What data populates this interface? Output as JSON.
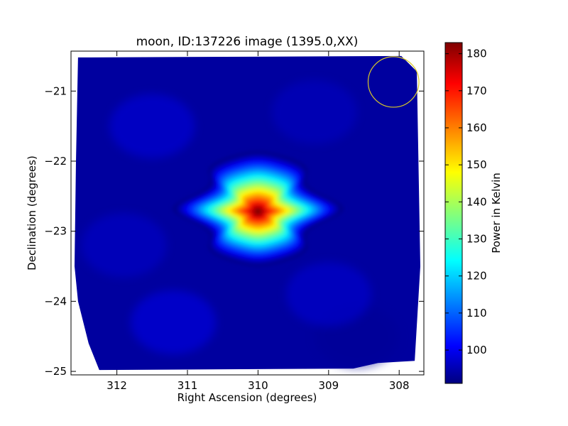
{
  "chart_data": [
    {
      "type": "heatmap",
      "title": "moon, ID:137226 image (1395.0,XX)",
      "xlabel": "Right Ascension (degrees)",
      "ylabel": "Declination (degrees)",
      "xlim": [
        312.65,
        307.65
      ],
      "ylim": [
        -25.05,
        -20.43
      ],
      "x_inverted": true,
      "xticks": [
        312,
        311,
        310,
        309,
        308
      ],
      "xtick_labels": [
        "312",
        "311",
        "310",
        "309",
        "308"
      ],
      "yticks": [
        -21,
        -22,
        -23,
        -24,
        -25
      ],
      "ytick_labels": [
        "−21",
        "−22",
        "−23",
        "−24",
        "−25"
      ],
      "background_level": 92,
      "peak": {
        "ra": 310.0,
        "dec": -22.72,
        "value": 183
      },
      "source_extent_deg": {
        "ra_halfwidth": 1.0,
        "dec_halfwidth": 0.75
      },
      "beam_circle": {
        "ra": 308.08,
        "dec": -20.87,
        "radius_deg": 0.36,
        "color": "#d6c62a"
      },
      "colorbar": {
        "label": "Power in Kelvin",
        "range": [
          91,
          183
        ],
        "ticks": [
          100,
          110,
          120,
          130,
          140,
          150,
          160,
          170,
          180
        ],
        "colormap": "jet"
      }
    }
  ],
  "colors": {
    "jet_low": "#00007f",
    "jet_blue": "#0000ff",
    "jet_cyan": "#00ffff",
    "jet_yellow": "#ffff00",
    "jet_red": "#ff0000",
    "jet_high": "#7f0000",
    "circle": "#d6c62a"
  }
}
